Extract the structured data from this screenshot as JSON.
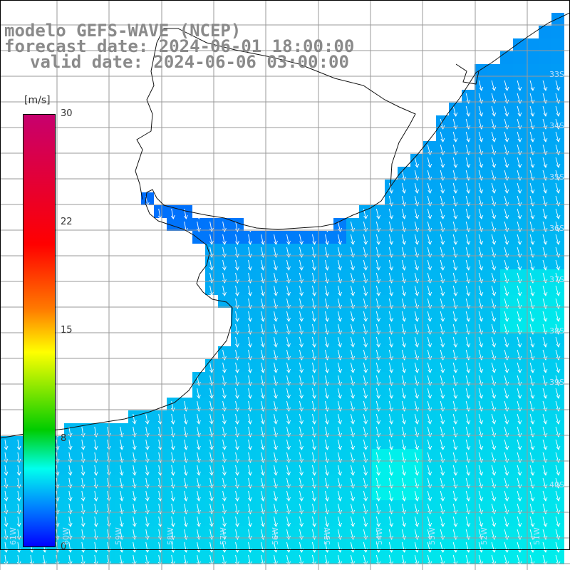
{
  "titles": {
    "model": "modelo GEFS-WAVE (NCEP)",
    "forecast": "forecast date: 2024-06-01 18:00:00",
    "valid": "valid date: 2024-06-06 03:00:00"
  },
  "colorbar": {
    "unit": "[m/s]",
    "ticks": [
      "30",
      "22",
      "15",
      "8",
      "0"
    ],
    "colors": [
      "#c7006e",
      "#ff0000",
      "#ff7a00",
      "#ffff00",
      "#00cc00",
      "#00ffee",
      "#0080ff",
      "#0000ff"
    ]
  },
  "grid_labels": {
    "lon": [
      "61W",
      "60W",
      "59W",
      "58W",
      "57W",
      "56W",
      "55W",
      "54W",
      "53W",
      "52W",
      "51W"
    ],
    "lat": [
      "33S",
      "34S",
      "35S",
      "36S",
      "37S",
      "38S",
      "39S",
      "40S"
    ]
  }
}
